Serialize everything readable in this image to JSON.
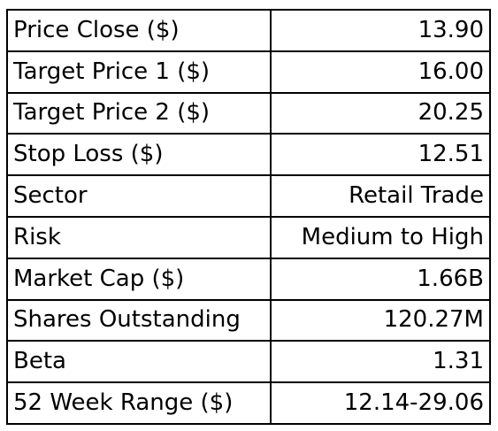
{
  "rows": [
    {
      "label": "Price Close ($)",
      "value": "13.90"
    },
    {
      "label": "Target Price 1 ($)",
      "value": "16.00"
    },
    {
      "label": "Target Price 2 ($)",
      "value": "20.25"
    },
    {
      "label": "Stop Loss ($)",
      "value": "12.51"
    },
    {
      "label": "Sector",
      "value": "Retail Trade"
    },
    {
      "label": "Risk",
      "value": "Medium to High"
    },
    {
      "label": "Market Cap ($)",
      "value": "1.66B"
    },
    {
      "label": "Shares Outstanding",
      "value": "120.27M"
    },
    {
      "label": "Beta",
      "value": "1.31"
    },
    {
      "label": "52 Week Range ($)",
      "value": "12.14-29.06"
    }
  ]
}
